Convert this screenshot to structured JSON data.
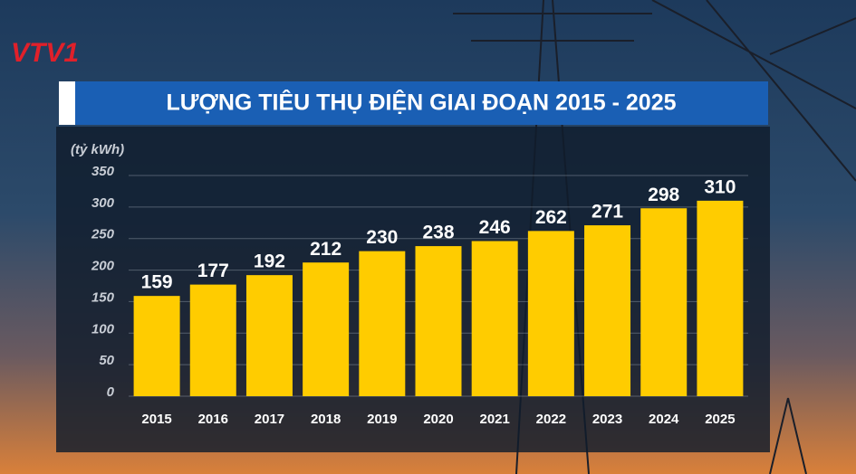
{
  "logo": "VTV1",
  "chart_data": {
    "type": "bar",
    "title": "LƯỢNG TIÊU THỤ ĐIỆN GIAI ĐOẠN 2015 - 2025",
    "y_label": "(tỷ kWh)",
    "categories": [
      "2015",
      "2016",
      "2017",
      "2018",
      "2019",
      "2020",
      "2021",
      "2022",
      "2023",
      "2024",
      "2025"
    ],
    "values": [
      159,
      177,
      192,
      212,
      230,
      238,
      246,
      262,
      271,
      298,
      310
    ],
    "color": "#ffcc00",
    "ylim": [
      0,
      350
    ],
    "yticks": [
      0,
      50,
      100,
      150,
      200,
      250,
      300,
      350
    ],
    "grid": true
  }
}
